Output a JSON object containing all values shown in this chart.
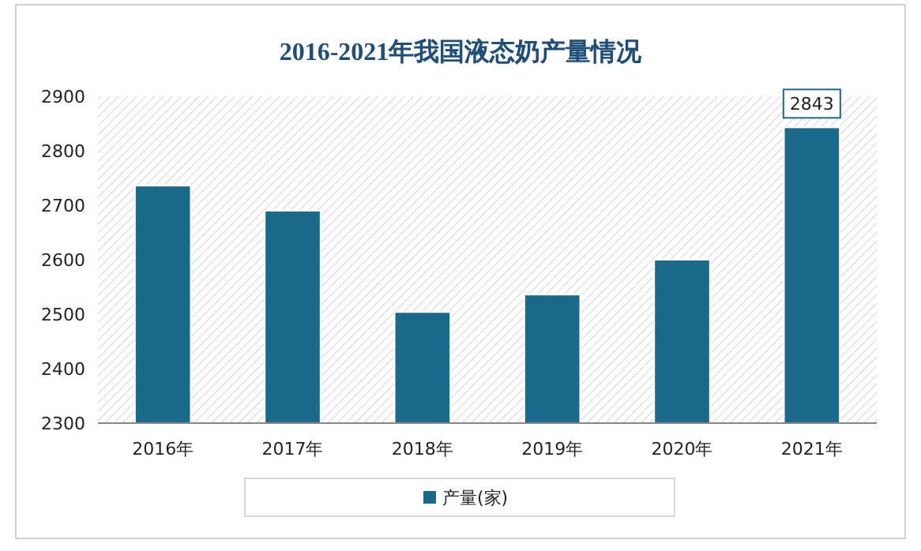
{
  "chart_data": {
    "type": "bar",
    "title": "2016-2021年我国液态奶产量情况",
    "categories": [
      "2016年",
      "2017年",
      "2018年",
      "2019年",
      "2020年",
      "2021年"
    ],
    "series": [
      {
        "name": "产量(家)",
        "color": "#1b6a8c",
        "values": [
          2736,
          2690,
          2504,
          2536,
          2600,
          2843
        ],
        "value_labels": [
          null,
          null,
          null,
          null,
          null,
          "2843"
        ]
      }
    ],
    "ylim": [
      2300,
      2900
    ],
    "yticks": [
      2300,
      2400,
      2500,
      2600,
      2700,
      2800,
      2900
    ],
    "grid": false,
    "legend": "bottom"
  }
}
